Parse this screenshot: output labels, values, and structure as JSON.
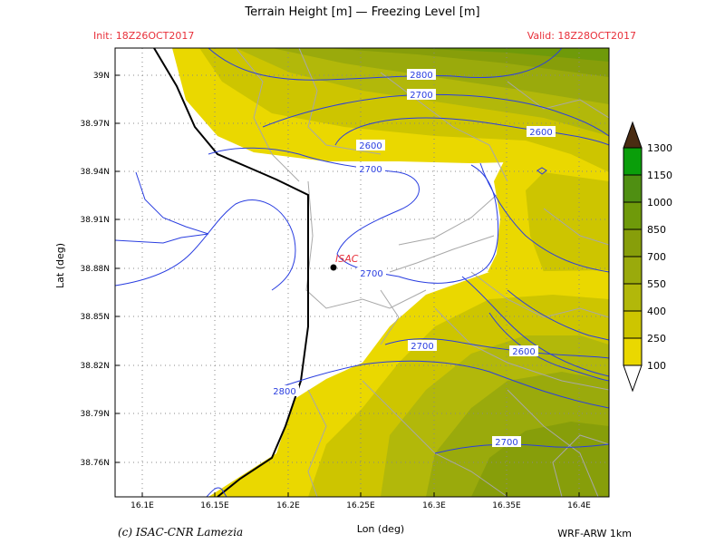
{
  "header": {
    "title": "Terrain Height [m] — Freezing Level [m]",
    "init": "Init: 18Z26OCT2017",
    "valid": "Valid: 18Z28OCT2017"
  },
  "footer": {
    "credit": "(c) ISAC-CNR Lamezia",
    "model": "WRF-ARW 1km"
  },
  "axes": {
    "xlabel": "Lon (deg)",
    "ylabel": "Lat (deg)",
    "lon_ticks": [
      "16.1E",
      "16.15E",
      "16.2E",
      "16.25E",
      "16.3E",
      "16.35E",
      "16.4E"
    ],
    "lat_ticks": [
      "39N",
      "38.97N",
      "38.94N",
      "38.91N",
      "38.88N",
      "38.85N",
      "38.82N",
      "38.79N",
      "38.76N"
    ]
  },
  "station": {
    "label": "ISAC"
  },
  "contours": [
    {
      "label": "2800"
    },
    {
      "label": "2700"
    },
    {
      "label": "2600"
    },
    {
      "label": "2700"
    },
    {
      "label": "2700"
    },
    {
      "label": "2600"
    },
    {
      "label": "2700"
    },
    {
      "label": "2600"
    },
    {
      "label": "2800"
    },
    {
      "label": "2700"
    }
  ],
  "colorbar": {
    "labels": [
      "1300",
      "1150",
      "1000",
      "850",
      "700",
      "550",
      "400",
      "250",
      "100"
    ],
    "colors": [
      "#0a9e0a",
      "#4f8f12",
      "#6f9a0a",
      "#879e0a",
      "#9aaa0c",
      "#b2b80a",
      "#cdc500",
      "#ead800"
    ],
    "top_color": "#4a2c12",
    "bottom_color": "#ffffff"
  }
}
